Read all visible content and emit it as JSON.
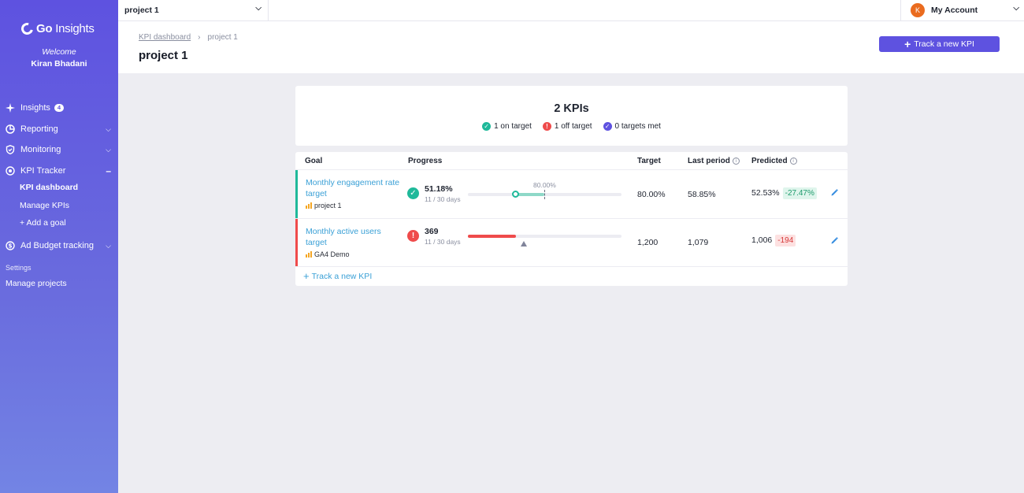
{
  "sidebar": {
    "brand": {
      "strong": "Go",
      "light": "Insights"
    },
    "welcome": "Welcome",
    "username": "Kiran Bhadani",
    "nav": {
      "insights": {
        "label": "Insights",
        "badge": "4",
        "icon": "sparkle-icon"
      },
      "reporting": {
        "label": "Reporting",
        "icon": "pie-chart-icon"
      },
      "monitoring": {
        "label": "Monitoring",
        "icon": "shield-icon"
      },
      "kpi_tracker": {
        "label": "KPI Tracker",
        "icon": "target-icon"
      },
      "ad_budget": {
        "label": "Ad Budget tracking",
        "icon": "dollar-icon"
      }
    },
    "kpi_sub": {
      "dashboard": "KPI dashboard",
      "manage": "Manage KPIs",
      "add_goal": "+ Add a goal"
    },
    "settings_label": "Settings",
    "manage_projects": "Manage projects"
  },
  "topbar": {
    "project_select": "project 1",
    "account_initial": "K",
    "account_label": "My Account"
  },
  "header": {
    "breadcrumb": {
      "root": "KPI dashboard",
      "current": "project 1"
    },
    "title": "project 1",
    "track_button": "Track a new KPI"
  },
  "summary": {
    "count": "2 KPIs",
    "on_target": "1 on target",
    "off_target": "1 off target",
    "targets_met": "0 targets met"
  },
  "table": {
    "headers": {
      "goal": "Goal",
      "progress": "Progress",
      "target": "Target",
      "last_period": "Last period",
      "predicted": "Predicted"
    },
    "rows": [
      {
        "goal": "Monthly engagement rate target",
        "source": "project 1",
        "progress_value": "51.18%",
        "days": "11 / 30 days",
        "target_marker_label": "80.00%",
        "target": "80.00%",
        "last_period": "58.85%",
        "predicted": "52.53%",
        "delta": "-27.47%",
        "status": "on-target"
      },
      {
        "goal": "Monthly active users target",
        "source": "GA4 Demo",
        "progress_value": "369",
        "days": "11 / 30 days",
        "target": "1,200",
        "last_period": "1,079",
        "predicted": "1,006",
        "delta": "-194",
        "status": "off-target"
      }
    ],
    "add_link": "Track a new KPI"
  },
  "colors": {
    "brand": "#5e52e0",
    "on_target": "#1fb99a",
    "off_target": "#ef4b4b",
    "link": "#3aa0d6"
  }
}
